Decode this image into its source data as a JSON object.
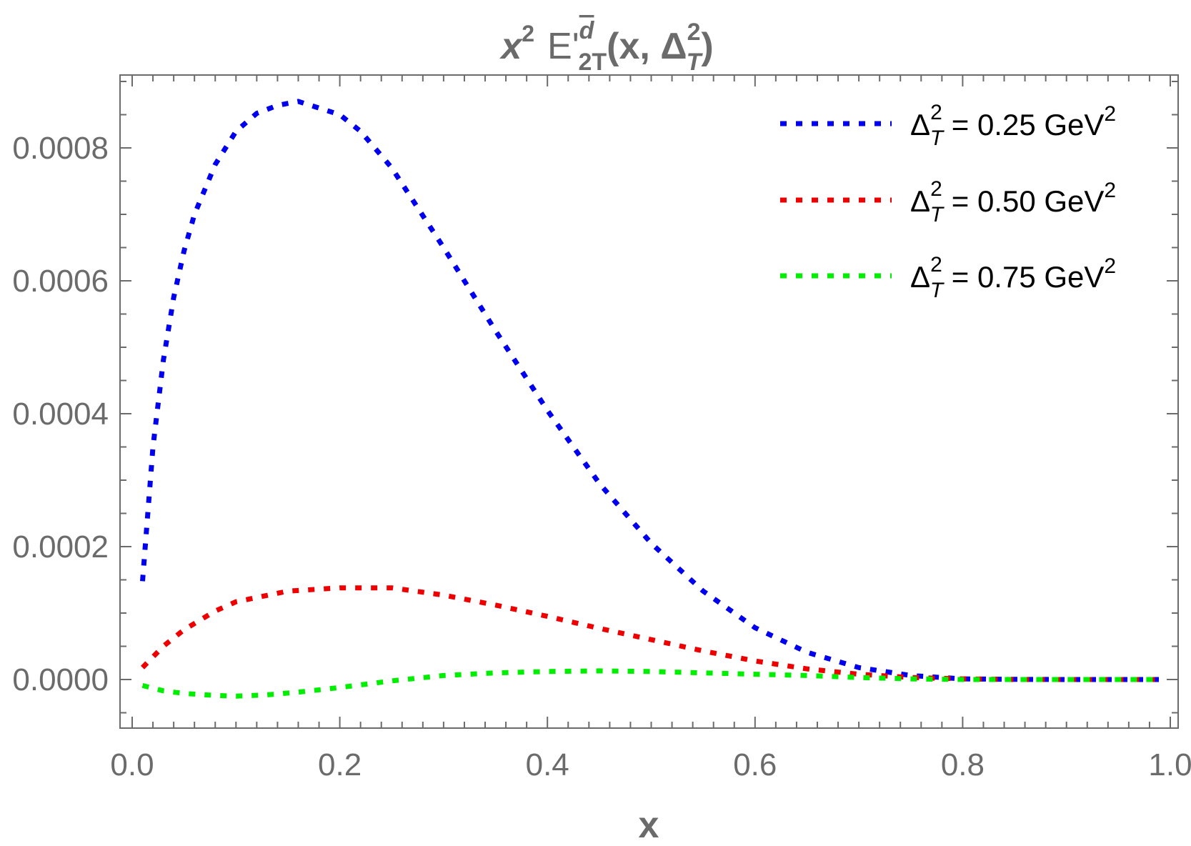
{
  "chart_data": {
    "type": "line",
    "title": {
      "x": "x",
      "x_exp": "2",
      "func": "E'",
      "sup": "d",
      "sub": "2T",
      "args_open": "(x, ",
      "delta": "Δ",
      "delta_exp": "2",
      "delta_sub": "T",
      "args_close": ")"
    },
    "xlabel": "x",
    "ylabel": "",
    "xlim": [
      0.0,
      1.0
    ],
    "ylim": [
      -7.5e-05,
      0.00092
    ],
    "x_ticks": [
      "0.0",
      "0.2",
      "0.4",
      "0.6",
      "0.8",
      "1.0"
    ],
    "x_tick_values": [
      0.0,
      0.2,
      0.4,
      0.6,
      0.8,
      1.0
    ],
    "y_ticks": [
      "0.0000",
      "0.0002",
      "0.0004",
      "0.0006",
      "0.0008"
    ],
    "y_tick_values": [
      0.0,
      0.0002,
      0.0004,
      0.0006,
      0.0008
    ],
    "grid": false,
    "legend_position": "top-right",
    "line_style": "dotted",
    "series": [
      {
        "name": "0.25",
        "legend": {
          "delta": "Δ",
          "exp": "2",
          "sub": "T",
          "text": " = 0.25 GeV",
          "unit_exp": "2"
        },
        "color": "#0000ee",
        "x": [
          0.01,
          0.02,
          0.03,
          0.04,
          0.05,
          0.06,
          0.08,
          0.1,
          0.12,
          0.14,
          0.16,
          0.18,
          0.2,
          0.22,
          0.25,
          0.3,
          0.35,
          0.4,
          0.45,
          0.5,
          0.55,
          0.6,
          0.65,
          0.7,
          0.75,
          0.8,
          0.85,
          0.9,
          0.95,
          0.99
        ],
        "y": [
          0.000148,
          0.00035,
          0.00048,
          0.000575,
          0.000645,
          0.0007,
          0.000775,
          0.000825,
          0.000852,
          0.000864,
          0.00087,
          0.00086,
          0.00085,
          0.000825,
          0.00077,
          0.00065,
          0.000525,
          0.000405,
          0.000295,
          0.000205,
          0.000133,
          7.8e-05,
          4.1e-05,
          1.8e-05,
          6e-06,
          1e-06,
          2e-07,
          0.0,
          0.0,
          0.0
        ]
      },
      {
        "name": "0.50",
        "legend": {
          "delta": "Δ",
          "exp": "2",
          "sub": "T",
          "text": " = 0.50 GeV",
          "unit_exp": "2"
        },
        "color": "#ee0000",
        "x": [
          0.01,
          0.03,
          0.05,
          0.08,
          0.1,
          0.15,
          0.2,
          0.25,
          0.3,
          0.35,
          0.4,
          0.45,
          0.5,
          0.55,
          0.6,
          0.65,
          0.7,
          0.75,
          0.8,
          0.85,
          0.9,
          0.95,
          0.99
        ],
        "y": [
          1.8e-05,
          5e-05,
          7.5e-05,
          0.000103,
          0.000117,
          0.000133,
          0.000138,
          0.000138,
          0.000127,
          0.000112,
          9.5e-05,
          7.7e-05,
          6e-05,
          4.3e-05,
          2.8e-05,
          1.6e-05,
          8e-06,
          3e-06,
          1e-06,
          0.0,
          0.0,
          0.0,
          0.0
        ]
      },
      {
        "name": "0.75",
        "legend": {
          "delta": "Δ",
          "exp": "2",
          "sub": "T",
          "text": " = 0.75 GeV",
          "unit_exp": "2"
        },
        "color": "#00ee00",
        "x": [
          0.01,
          0.03,
          0.05,
          0.08,
          0.1,
          0.13,
          0.16,
          0.2,
          0.25,
          0.3,
          0.35,
          0.4,
          0.45,
          0.5,
          0.55,
          0.6,
          0.65,
          0.7,
          0.75,
          0.8,
          0.85,
          0.9,
          0.95,
          0.99
        ],
        "y": [
          -9e-06,
          -1.7e-05,
          -2.1e-05,
          -2.4e-05,
          -2.5e-05,
          -2.3e-05,
          -1.9e-05,
          -1.2e-05,
          -2e-06,
          6e-06,
          1e-05,
          1.2e-05,
          1.3e-05,
          1.2e-05,
          1e-05,
          8e-06,
          6e-06,
          3e-06,
          1e-06,
          0.0,
          0.0,
          0.0,
          0.0,
          0.0
        ]
      }
    ]
  }
}
